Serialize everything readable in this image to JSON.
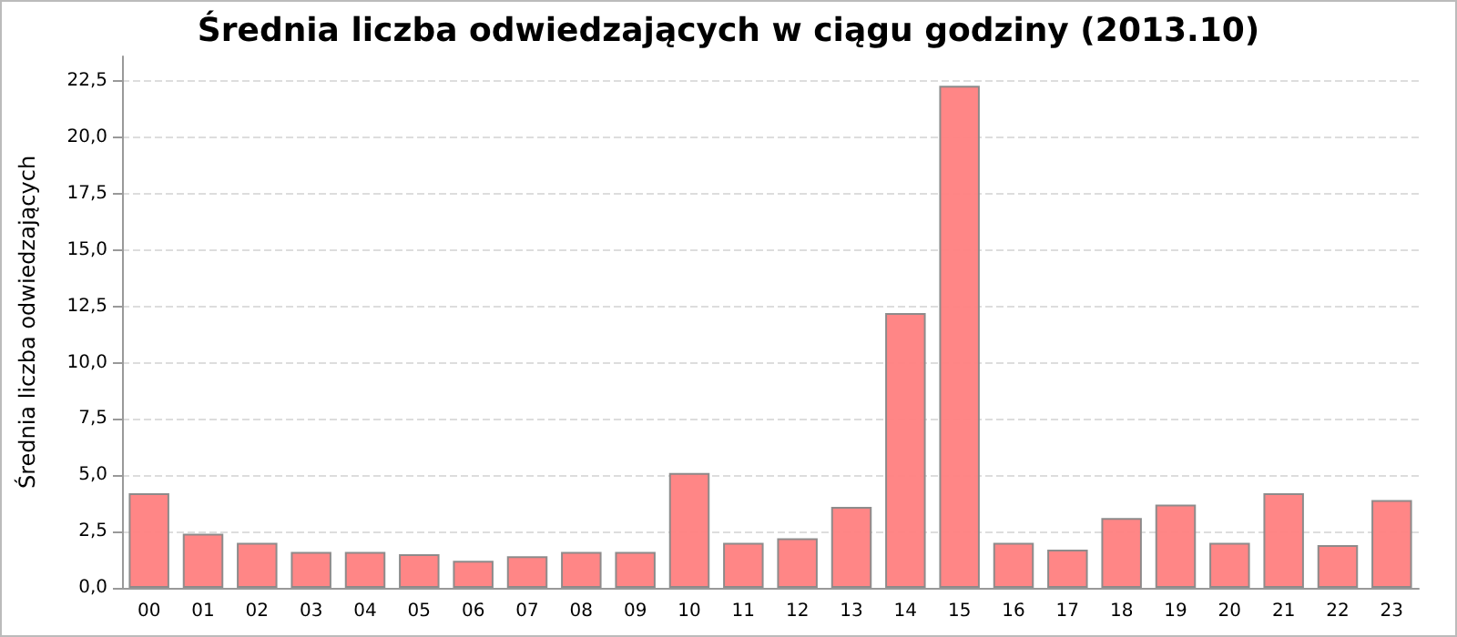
{
  "chart_data": {
    "type": "bar",
    "title": "Średnia liczba odwiedzających w ciągu godziny (2013.10)",
    "ylabel": "Średnia liczba odwiedzających",
    "categories": [
      "00",
      "01",
      "02",
      "03",
      "04",
      "05",
      "06",
      "07",
      "08",
      "09",
      "10",
      "11",
      "12",
      "13",
      "14",
      "15",
      "16",
      "17",
      "18",
      "19",
      "20",
      "21",
      "22",
      "23"
    ],
    "values": [
      4.2,
      2.4,
      2.0,
      1.6,
      1.6,
      1.5,
      1.2,
      1.4,
      1.6,
      1.6,
      5.1,
      2.0,
      2.2,
      3.6,
      12.2,
      22.3,
      2.0,
      1.7,
      3.1,
      3.7,
      2.0,
      4.2,
      1.9,
      3.9
    ],
    "color": "#ff8080",
    "ylim": [
      0,
      23.6
    ],
    "yticks": [
      {
        "value": 0,
        "label": "0,0"
      },
      {
        "value": 2.5,
        "label": "2,5"
      },
      {
        "value": 5,
        "label": "5,0"
      },
      {
        "value": 7.5,
        "label": "7,5"
      },
      {
        "value": 10,
        "label": "10,0"
      },
      {
        "value": 12.5,
        "label": "12,5"
      },
      {
        "value": 15,
        "label": "15,0"
      },
      {
        "value": 17.5,
        "label": "17,5"
      },
      {
        "value": 20,
        "label": "20,0"
      },
      {
        "value": 22.5,
        "label": "22,5"
      }
    ],
    "grid": "y"
  }
}
